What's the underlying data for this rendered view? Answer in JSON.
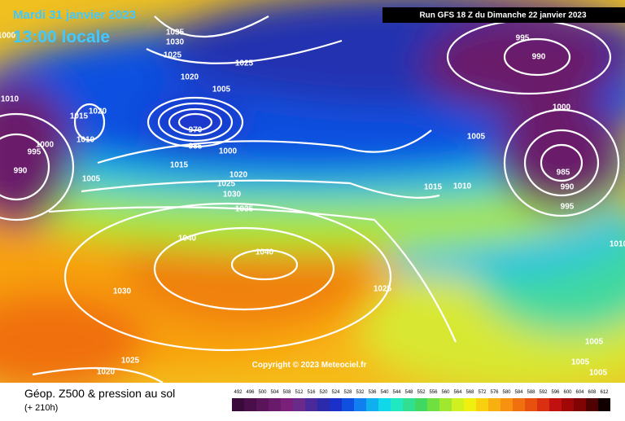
{
  "header": {
    "date": "Mardi 31 janvier 2023",
    "time": "13:00 locale",
    "run": "Run GFS 18 Z du Dimanche 22 janvier 2023"
  },
  "copyright": "Copyright © 2023 Meteociel.fr",
  "legend": {
    "title": "Géop. Z500 & pression au sol",
    "lead": "(+ 210h)",
    "scale": [
      {
        "label": "492",
        "color": "#3a0a3a"
      },
      {
        "label": "496",
        "color": "#4a0f4a"
      },
      {
        "label": "500",
        "color": "#5a145a"
      },
      {
        "label": "504",
        "color": "#6a1a6a"
      },
      {
        "label": "508",
        "color": "#7a207a"
      },
      {
        "label": "512",
        "color": "#6a2a8a"
      },
      {
        "label": "516",
        "color": "#4a2a9a"
      },
      {
        "label": "520",
        "color": "#2a2aaa"
      },
      {
        "label": "524",
        "color": "#1a30c8"
      },
      {
        "label": "528",
        "color": "#1050e0"
      },
      {
        "label": "532",
        "color": "#1080f0"
      },
      {
        "label": "536",
        "color": "#10b0f0"
      },
      {
        "label": "540",
        "color": "#10d8e8"
      },
      {
        "label": "544",
        "color": "#20e8c0"
      },
      {
        "label": "548",
        "color": "#30e090"
      },
      {
        "label": "552",
        "color": "#40d860"
      },
      {
        "label": "556",
        "color": "#70e040"
      },
      {
        "label": "560",
        "color": "#a0e830"
      },
      {
        "label": "564",
        "color": "#d0f020"
      },
      {
        "label": "568",
        "color": "#f0f010"
      },
      {
        "label": "572",
        "color": "#f8d010"
      },
      {
        "label": "576",
        "color": "#f8b010"
      },
      {
        "label": "580",
        "color": "#f89010"
      },
      {
        "label": "584",
        "color": "#f07010"
      },
      {
        "label": "588",
        "color": "#e85010"
      },
      {
        "label": "592",
        "color": "#d83010"
      },
      {
        "label": "596",
        "color": "#c01010"
      },
      {
        "label": "600",
        "color": "#a00808"
      },
      {
        "label": "604",
        "color": "#800404"
      },
      {
        "label": "608",
        "color": "#500202"
      },
      {
        "label": "612",
        "color": "#100000"
      }
    ]
  },
  "isobar_labels": [
    "1035",
    "1030",
    "1025",
    "1020",
    "1025",
    "1005",
    "1000",
    "1015",
    "1020",
    "1025",
    "1030",
    "1035",
    "1040",
    "1040",
    "1030",
    "1025",
    "1025",
    "1020",
    "1010",
    "1020",
    "1015",
    "1010",
    "1000",
    "995",
    "990",
    "1005",
    "995",
    "990",
    "1000",
    "1005",
    "1015",
    "1010",
    "985",
    "990",
    "995",
    "1005",
    "1005",
    "1005",
    "1010",
    "970",
    "985",
    "1000"
  ]
}
